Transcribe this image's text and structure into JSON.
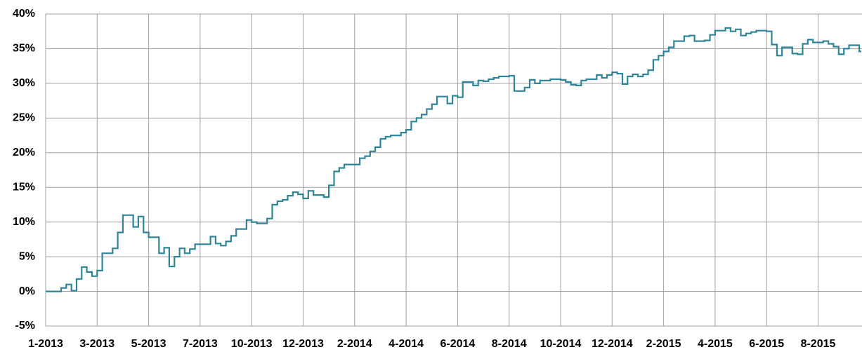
{
  "chart_data": {
    "type": "line",
    "step": true,
    "color": "#2f8597",
    "grid": true,
    "categories": [
      "1-2013",
      null,
      null,
      null,
      null,
      null,
      null,
      null,
      null,
      null,
      "3-2013",
      null,
      null,
      null,
      null,
      null,
      null,
      null,
      null,
      null,
      "5-2013",
      null,
      null,
      null,
      null,
      null,
      null,
      null,
      null,
      null,
      "7-2013",
      null,
      null,
      null,
      null,
      null,
      null,
      null,
      null,
      null,
      "10-2013",
      null,
      null,
      null,
      null,
      null,
      null,
      null,
      null,
      null,
      "12-2013",
      null,
      null,
      null,
      null,
      null,
      null,
      null,
      null,
      null,
      "2-2014",
      null,
      null,
      null,
      null,
      null,
      null,
      null,
      null,
      null,
      "4-2014",
      null,
      null,
      null,
      null,
      null,
      null,
      null,
      null,
      null,
      "6-2014",
      null,
      null,
      null,
      null,
      null,
      null,
      null,
      null,
      null,
      "8-2014",
      null,
      null,
      null,
      null,
      null,
      null,
      null,
      null,
      null,
      "10-2014",
      null,
      null,
      null,
      null,
      null,
      null,
      null,
      null,
      null,
      "12-2014",
      null,
      null,
      null,
      null,
      null,
      null,
      null,
      null,
      null,
      "2-2015",
      null,
      null,
      null,
      null,
      null,
      null,
      null,
      null,
      null,
      "4-2015",
      null,
      null,
      null,
      null,
      null,
      null,
      null,
      null,
      null,
      "6-2015",
      null,
      null,
      null,
      null,
      null,
      null,
      null,
      null,
      null,
      "8-2015",
      null,
      null,
      null,
      null,
      null,
      null,
      null,
      null
    ],
    "values": [
      0,
      0,
      0,
      0.5,
      1.0,
      0.1,
      1.8,
      3.5,
      2.8,
      2.2,
      3.0,
      5.5,
      5.5,
      6.2,
      8.5,
      11.0,
      11.0,
      9.3,
      10.8,
      8.5,
      7.8,
      7.8,
      5.5,
      6.3,
      3.6,
      5.0,
      6.2,
      5.5,
      6.1,
      6.8,
      6.8,
      6.8,
      7.9,
      6.9,
      6.6,
      7.2,
      8.0,
      9.0,
      9.0,
      10.3,
      10.0,
      9.8,
      9.8,
      10.5,
      12.5,
      13.0,
      13.2,
      13.8,
      14.3,
      14.0,
      13.4,
      14.5,
      13.9,
      13.9,
      13.6,
      15.3,
      17.3,
      17.8,
      18.3,
      18.3,
      18.3,
      19.2,
      19.5,
      20.2,
      20.8,
      22.0,
      22.3,
      22.5,
      22.5,
      22.9,
      23.3,
      24.5,
      25.0,
      25.5,
      26.3,
      27.0,
      28.1,
      28.1,
      27.1,
      28.2,
      28.0,
      30.2,
      30.2,
      29.7,
      30.4,
      30.3,
      30.6,
      30.8,
      31.0,
      31.0,
      31.1,
      28.9,
      28.9,
      29.4,
      30.5,
      30.0,
      30.4,
      30.4,
      30.6,
      30.6,
      30.5,
      30.2,
      29.8,
      29.7,
      30.4,
      30.6,
      30.6,
      31.2,
      30.8,
      31.2,
      31.6,
      31.4,
      29.9,
      31.0,
      31.3,
      31.0,
      31.3,
      31.9,
      33.4,
      34.0,
      34.6,
      35.2,
      36.1,
      36.1,
      36.8,
      36.9,
      36.1,
      36.1,
      36.2,
      37.0,
      37.6,
      37.6,
      38.0,
      37.5,
      37.8,
      36.9,
      37.2,
      37.4,
      37.6,
      37.6,
      37.5,
      35.6,
      34.0,
      35.2,
      35.2,
      34.3,
      34.2,
      35.7,
      36.3,
      35.9,
      35.9,
      36.1,
      35.7,
      35.3,
      34.2,
      35.0,
      35.5,
      35.5,
      34.6
    ],
    "ylim": [
      -5,
      40
    ],
    "yticks": [
      {
        "value": -5,
        "label": "-5%"
      },
      {
        "value": 0,
        "label": "0%"
      },
      {
        "value": 5,
        "label": "5%"
      },
      {
        "value": 10,
        "label": "10%"
      },
      {
        "value": 15,
        "label": "15%"
      },
      {
        "value": 20,
        "label": "20%"
      },
      {
        "value": 25,
        "label": "25%"
      },
      {
        "value": 30,
        "label": "30%"
      },
      {
        "value": 35,
        "label": "35%"
      },
      {
        "value": 40,
        "label": "40%"
      }
    ]
  }
}
